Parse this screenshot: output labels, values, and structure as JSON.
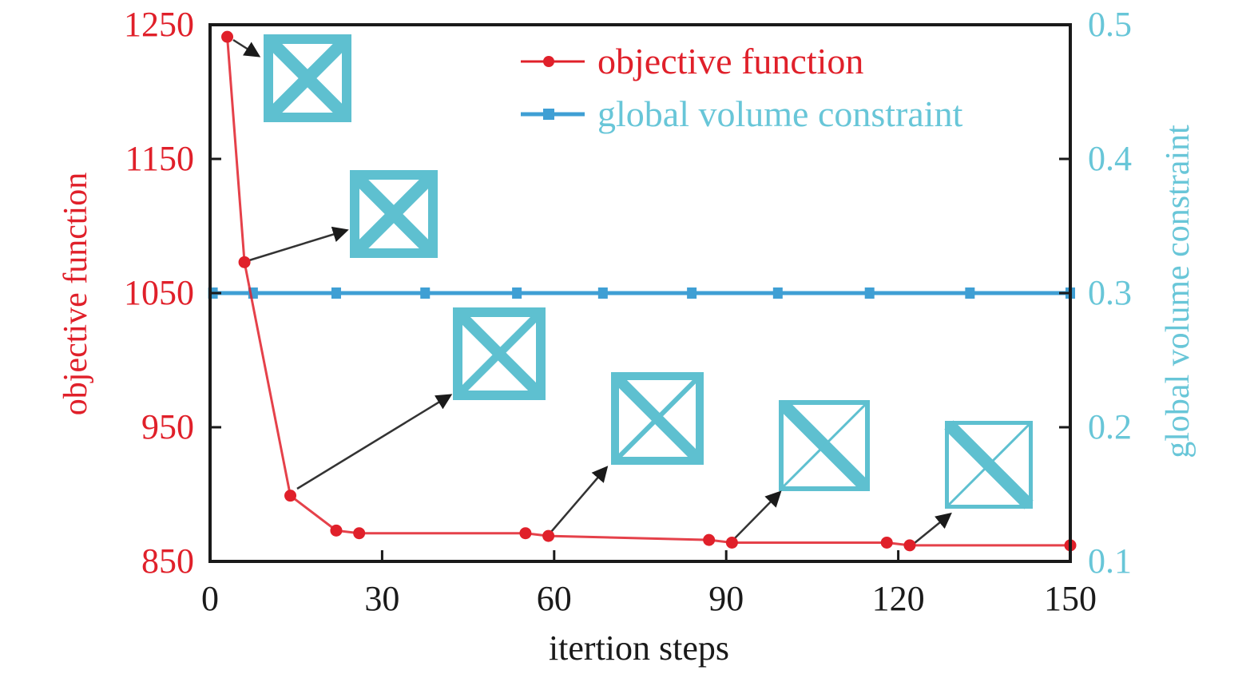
{
  "chart_data": {
    "type": "line",
    "title": "",
    "xlabel": "itertion steps",
    "ylabel": "objective function",
    "ylabel_right": "global volume constraint",
    "xlim": [
      0,
      150
    ],
    "ylim": [
      850,
      1250
    ],
    "ylim_right": [
      0.1,
      0.5
    ],
    "x_ticks": [
      "0",
      "30",
      "60",
      "90",
      "120",
      "150"
    ],
    "y_ticks": [
      "850",
      "950",
      "1050",
      "1150",
      "1250"
    ],
    "y_ticks_right": [
      "0.1",
      "0.2",
      "0.3",
      "0.4",
      "0.5"
    ],
    "grid": false,
    "legend_position": "upper right",
    "series": [
      {
        "name": "objective function",
        "axis": "left",
        "color": "#e0202a",
        "marker": "circle",
        "x": [
          3,
          6,
          14,
          22,
          26,
          55,
          59,
          87,
          91,
          118,
          122,
          150
        ],
        "values": [
          1241,
          1073,
          899,
          873,
          871,
          871,
          869,
          866,
          864,
          864,
          862,
          862
        ]
      },
      {
        "name": "global volume constraint",
        "axis": "right",
        "color": "#3f9fd4",
        "marker": "square",
        "x": [
          0.5,
          7.5,
          22,
          37.5,
          53.5,
          68.5,
          84,
          99,
          115,
          132.5,
          150
        ],
        "values": [
          0.3,
          0.3,
          0.3,
          0.3,
          0.3,
          0.3,
          0.3,
          0.3,
          0.3,
          0.3,
          0.3
        ]
      }
    ],
    "annotations": [
      {
        "type": "inset-topology",
        "points_to_x": 3,
        "description": "uniform thick X-brace structure"
      },
      {
        "type": "inset-topology",
        "points_to_x": 6,
        "description": "thick X-brace structure"
      },
      {
        "type": "inset-topology",
        "points_to_x": 14,
        "description": "X-brace with thinner lower-right member"
      },
      {
        "type": "inset-topology",
        "points_to_x": 59,
        "description": "asymmetric X-brace, dominant main diagonal"
      },
      {
        "type": "inset-topology",
        "points_to_x": 91,
        "description": "single thick diagonal with thin cross member"
      },
      {
        "type": "inset-topology",
        "points_to_x": 122,
        "description": "single thick diagonal with thin cross member"
      }
    ]
  },
  "legend": {
    "items": [
      {
        "label": "objective function",
        "color": "#e0202a"
      },
      {
        "label": "global volume constraint",
        "color": "#68c6d8",
        "line_color": "#3f9fd4"
      }
    ]
  },
  "colors": {
    "objective": "#e0202a",
    "volume_line": "#3f9fd4",
    "volume_text": "#68c6d8",
    "inset": "#5ec0d0",
    "axis": "#1a1a1a"
  }
}
